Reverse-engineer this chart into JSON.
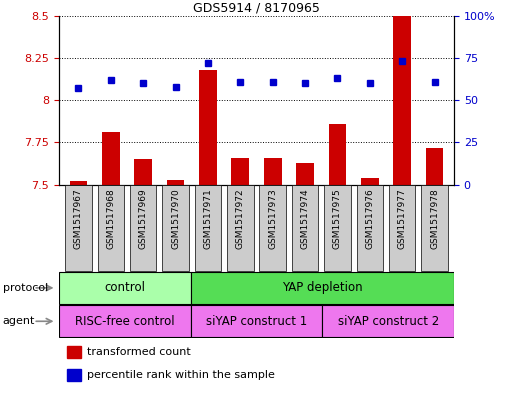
{
  "title": "GDS5914 / 8170965",
  "samples": [
    "GSM1517967",
    "GSM1517968",
    "GSM1517969",
    "GSM1517970",
    "GSM1517971",
    "GSM1517972",
    "GSM1517973",
    "GSM1517974",
    "GSM1517975",
    "GSM1517976",
    "GSM1517977",
    "GSM1517978"
  ],
  "transformed_count": [
    7.52,
    7.81,
    7.65,
    7.53,
    8.18,
    7.66,
    7.66,
    7.63,
    7.86,
    7.54,
    8.5,
    7.72
  ],
  "percentile_rank": [
    57,
    62,
    60,
    58,
    72,
    61,
    61,
    60,
    63,
    60,
    73,
    61
  ],
  "ylim_left": [
    7.5,
    8.5
  ],
  "ylim_right": [
    0,
    100
  ],
  "yticks_left": [
    7.5,
    7.75,
    8.0,
    8.25,
    8.5
  ],
  "yticks_right": [
    0,
    25,
    50,
    75,
    100
  ],
  "ytick_labels_left": [
    "7.5",
    "7.75",
    "8",
    "8.25",
    "8.5"
  ],
  "ytick_labels_right": [
    "0",
    "25",
    "50",
    "75",
    "100%"
  ],
  "bar_color": "#cc0000",
  "dot_color": "#0000cc",
  "protocol_groups": [
    {
      "label": "control",
      "start": 0,
      "end": 3,
      "color": "#aaffaa"
    },
    {
      "label": "YAP depletion",
      "start": 4,
      "end": 11,
      "color": "#55dd55"
    }
  ],
  "agent_groups": [
    {
      "label": "RISC-free control",
      "start": 0,
      "end": 3,
      "color": "#ee77ee"
    },
    {
      "label": "siYAP construct 1",
      "start": 4,
      "end": 7,
      "color": "#ee77ee"
    },
    {
      "label": "siYAP construct 2",
      "start": 8,
      "end": 11,
      "color": "#ee77ee"
    }
  ],
  "protocol_label": "protocol",
  "agent_label": "agent",
  "legend_red_label": "transformed count",
  "legend_blue_label": "percentile rank within the sample",
  "tick_color_left": "#cc0000",
  "tick_color_right": "#0000cc",
  "sample_box_color": "#cccccc",
  "arrow_color": "#888888"
}
